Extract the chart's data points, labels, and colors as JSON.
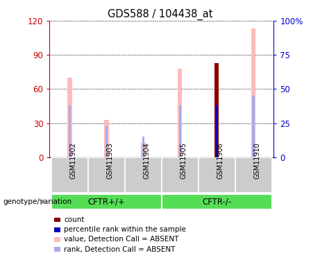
{
  "title": "GDS588 / 104438_at",
  "samples": [
    "GSM11902",
    "GSM11903",
    "GSM11904",
    "GSM11905",
    "GSM11906",
    "GSM11910"
  ],
  "value_absent": [
    70,
    33,
    13,
    78,
    82,
    113
  ],
  "rank_absent": [
    38,
    23,
    15,
    38,
    38,
    45
  ],
  "count_value": [
    0,
    0,
    0,
    0,
    83,
    0
  ],
  "percentile_value": [
    0,
    0,
    0,
    0,
    38,
    0
  ],
  "ylim_left": [
    0,
    120
  ],
  "ylim_right": [
    0,
    100
  ],
  "yticks_left": [
    0,
    30,
    60,
    90,
    120
  ],
  "yticks_right": [
    0,
    25,
    50,
    75,
    100
  ],
  "ytick_labels_right": [
    "0",
    "25",
    "50",
    "75",
    "100%"
  ],
  "color_value_absent": "#ffbbbb",
  "color_rank_absent": "#aaaaee",
  "color_count": "#880000",
  "color_percentile": "#0000bb",
  "left_axis_color": "#cc0000",
  "right_axis_color": "#0000cc",
  "xlabel_area_color": "#cccccc",
  "group1_color": "#55dd55",
  "group2_color": "#44cc44",
  "legend_items": [
    {
      "label": "count",
      "color": "#880000"
    },
    {
      "label": "percentile rank within the sample",
      "color": "#0000bb"
    },
    {
      "label": "value, Detection Call = ABSENT",
      "color": "#ffbbbb"
    },
    {
      "label": "rank, Detection Call = ABSENT",
      "color": "#aaaaee"
    }
  ]
}
